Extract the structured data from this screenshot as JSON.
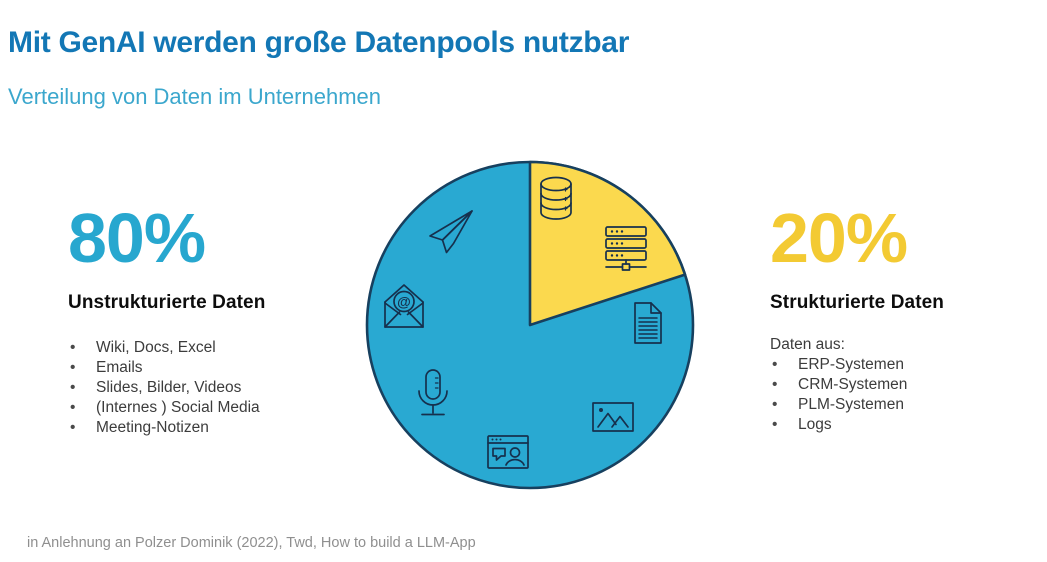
{
  "header": {
    "title": "Mit GenAI werden große Datenpools nutzbar",
    "subtitle": "Verteilung von Daten im Unternehmen"
  },
  "chart_data": {
    "type": "pie",
    "title": "Verteilung von Daten im Unternehmen",
    "slices": [
      {
        "label": "Unstrukturierte Daten",
        "value": 80,
        "percent_label": "80%",
        "color": "#29a9d2"
      },
      {
        "label": "Strukturierte Daten",
        "value": 20,
        "percent_label": "20%",
        "color": "#fbd94e"
      }
    ],
    "start_angle_deg": 0,
    "direction": "clockwise",
    "legend_position": "sides",
    "icons_in_unstructured_slice": [
      "paper-plane-icon",
      "envelope-at-icon",
      "document-icon",
      "microphone-icon",
      "image-icon",
      "browser-chat-icon"
    ],
    "icons_in_structured_slice": [
      "database-icon",
      "server-icon"
    ]
  },
  "left_panel": {
    "percent": "80%",
    "heading": "Unstrukturierte Daten",
    "items": [
      "Wiki, Docs, Excel",
      "Emails",
      "Slides, Bilder, Videos",
      "(Internes ) Social Media",
      "Meeting-Notizen"
    ]
  },
  "right_panel": {
    "percent": "20%",
    "heading": "Strukturierte Daten",
    "intro": "Daten aus:",
    "items": [
      "ERP-Systemen",
      "CRM-Systemen",
      "PLM-Systemen",
      "Logs"
    ]
  },
  "footer": {
    "source": "in Anlehnung an Polzer Dominik (2022), Twd, How to build a LLM-App"
  },
  "icons": {
    "envelope_at_glyph": "@"
  },
  "colors": {
    "title": "#1377b5",
    "subtitle": "#3ba7cd",
    "cyan": "#29a9d2",
    "yellow": "#fbd94e",
    "navy": "#17405f",
    "iconNavy": "#16304d",
    "cyanText": "#27a7cf",
    "yellowText": "#f3ca33",
    "textDark": "#3c3c3c",
    "gray": "#8f8f8f"
  }
}
